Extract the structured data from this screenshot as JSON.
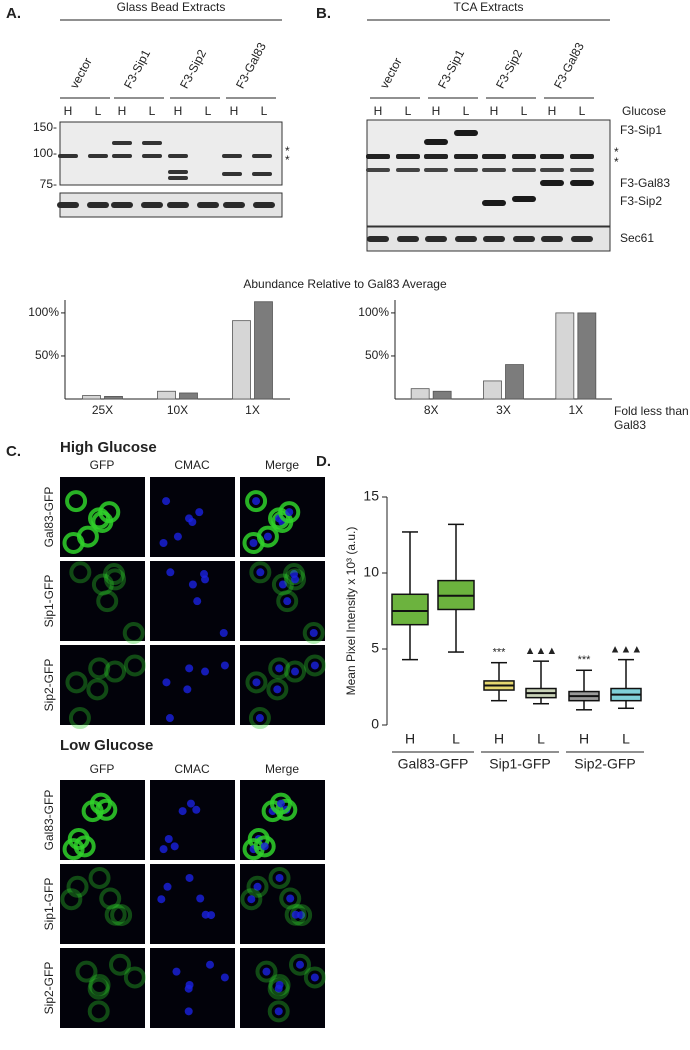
{
  "panel_labels": [
    "A.",
    "B.",
    "C.",
    "D."
  ],
  "blot_a": {
    "title": "Glass Bead Extracts",
    "lanes": [
      "vector",
      "F3-Sip1",
      "F3-Sip2",
      "F3-Gal83"
    ],
    "conditions": [
      "H",
      "L",
      "H",
      "L",
      "H",
      "L",
      "H",
      "L"
    ],
    "markers": [
      "150-",
      "100-",
      "75-"
    ],
    "asterisks": [
      "*",
      "*"
    ]
  },
  "blot_b": {
    "title": "TCA Extracts",
    "lanes": [
      "vector",
      "F3-Sip1",
      "F3-Sip2",
      "F3-Gal83"
    ],
    "conditions": [
      "H",
      "L",
      "H",
      "L",
      "H",
      "L",
      "H",
      "L"
    ],
    "glucose_label": "Glucose",
    "band_labels": [
      "F3-Sip1",
      "F3-Gal83",
      "F3-Sip2"
    ],
    "asterisks": [
      "*",
      "*"
    ],
    "loading_label": "Sec61"
  },
  "quant_title": "Abundance Relative to Gal83 Average",
  "chart_data": [
    {
      "type": "bar",
      "categories": [
        "25X",
        "10X",
        "1X"
      ],
      "series": [
        {
          "color": "#d6d6d6",
          "values": [
            4,
            9,
            91
          ]
        },
        {
          "color": "#7c7c7c",
          "values": [
            3,
            7,
            113
          ]
        }
      ],
      "ylim": [
        0,
        115
      ],
      "yticks": [
        {
          "value": 50,
          "label": "50%"
        },
        {
          "value": 100,
          "label": "100%"
        }
      ]
    },
    {
      "type": "bar",
      "categories": [
        "8X",
        "3X",
        "1X"
      ],
      "xlabel": "Fold less than Gal83",
      "series": [
        {
          "color": "#d6d6d6",
          "values": [
            12,
            21,
            100
          ]
        },
        {
          "color": "#7c7c7c",
          "values": [
            9,
            40,
            100
          ]
        }
      ],
      "ylim": [
        0,
        115
      ],
      "yticks": [
        {
          "value": 50,
          "label": "50%"
        },
        {
          "value": 100,
          "label": "100%"
        }
      ]
    },
    {
      "type": "box",
      "categories": [
        "H",
        "L",
        "H",
        "L",
        "H",
        "L"
      ],
      "groups": [
        "Gal83-GFP",
        "Sip1-GFP",
        "Sip2-GFP"
      ],
      "ylabel": "Mean Pixel Intensity x 10³ (a.u.)",
      "min": [
        4.3,
        4.8,
        1.6,
        1.4,
        1.0,
        1.1
      ],
      "q1": [
        6.6,
        7.6,
        2.3,
        1.8,
        1.6,
        1.6
      ],
      "median": [
        7.5,
        8.5,
        2.6,
        2.1,
        1.9,
        2.0
      ],
      "q3": [
        8.6,
        9.5,
        2.9,
        2.4,
        2.2,
        2.4
      ],
      "max": [
        12.7,
        13.2,
        4.1,
        4.2,
        3.6,
        4.3
      ],
      "colors": [
        "#6cb33e",
        "#6cb33e",
        "#e6d870",
        "#c9d3b8",
        "#9a9a9a",
        "#7fd0d8"
      ],
      "annotations": [
        null,
        null,
        "***",
        "▲▲▲",
        "***",
        "▲▲▲"
      ],
      "ylim": [
        0,
        15
      ],
      "yticks": [
        0,
        5,
        10,
        15
      ]
    }
  ],
  "microscopy": {
    "sections": [
      {
        "title": "High Glucose",
        "columns": [
          "GFP",
          "CMAC",
          "Merge"
        ],
        "rows": [
          "Gal83-GFP",
          "Sip1-GFP",
          "Sip2-GFP"
        ]
      },
      {
        "title": "Low Glucose",
        "columns": [
          "GFP",
          "CMAC",
          "Merge"
        ],
        "rows": [
          "Gal83-GFP",
          "Sip1-GFP",
          "Sip2-GFP"
        ]
      }
    ]
  }
}
